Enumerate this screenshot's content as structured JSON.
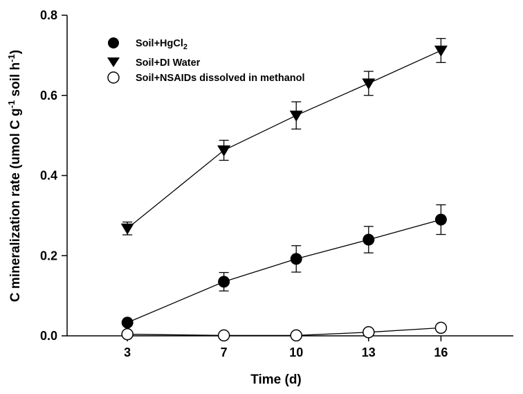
{
  "chart_data": {
    "type": "line",
    "x": [
      3,
      7,
      10,
      13,
      16
    ],
    "xlabel": "Time (d)",
    "ylabel": {
      "main": "C mineralization rate (umol C g",
      "sup1": "-1",
      "mid": " soil h",
      "sup2": "-1",
      "end": ")"
    },
    "xlim": [
      0.5,
      19
    ],
    "ylim": [
      0,
      0.8
    ],
    "yticks": [
      0.0,
      0.2,
      0.4,
      0.6,
      0.8
    ],
    "ytick_labels": [
      "0.0",
      "0.2",
      "0.4",
      "0.6",
      "0.8"
    ],
    "xticks": [
      3,
      7,
      10,
      13,
      16
    ],
    "xtick_labels": [
      "3",
      "7",
      "10",
      "13",
      "16"
    ],
    "grid": false,
    "legend_position": "top-left",
    "series": [
      {
        "legend": {
          "main": "Soil+HgCl",
          "sub": "2"
        },
        "marker": "filled-circle",
        "color": "#000000",
        "values": [
          0.033,
          0.135,
          0.192,
          0.24,
          0.29
        ],
        "errors": [
          0.0,
          0.023,
          0.033,
          0.033,
          0.037
        ]
      },
      {
        "legend": {
          "main": "Soil+DI Water",
          "sub": ""
        },
        "marker": "filled-triangle-down",
        "color": "#000000",
        "values": [
          0.268,
          0.463,
          0.55,
          0.63,
          0.712
        ],
        "errors": [
          0.016,
          0.025,
          0.034,
          0.03,
          0.03
        ]
      },
      {
        "legend": {
          "main": "Soil+NSAIDs dissolved in methanol",
          "sub": ""
        },
        "marker": "open-circle",
        "color": "#000000",
        "values": [
          0.004,
          0.001,
          0.001,
          0.009,
          0.02
        ],
        "errors": [
          0.0,
          0.0,
          0.0,
          0.0,
          0.0
        ]
      }
    ]
  }
}
